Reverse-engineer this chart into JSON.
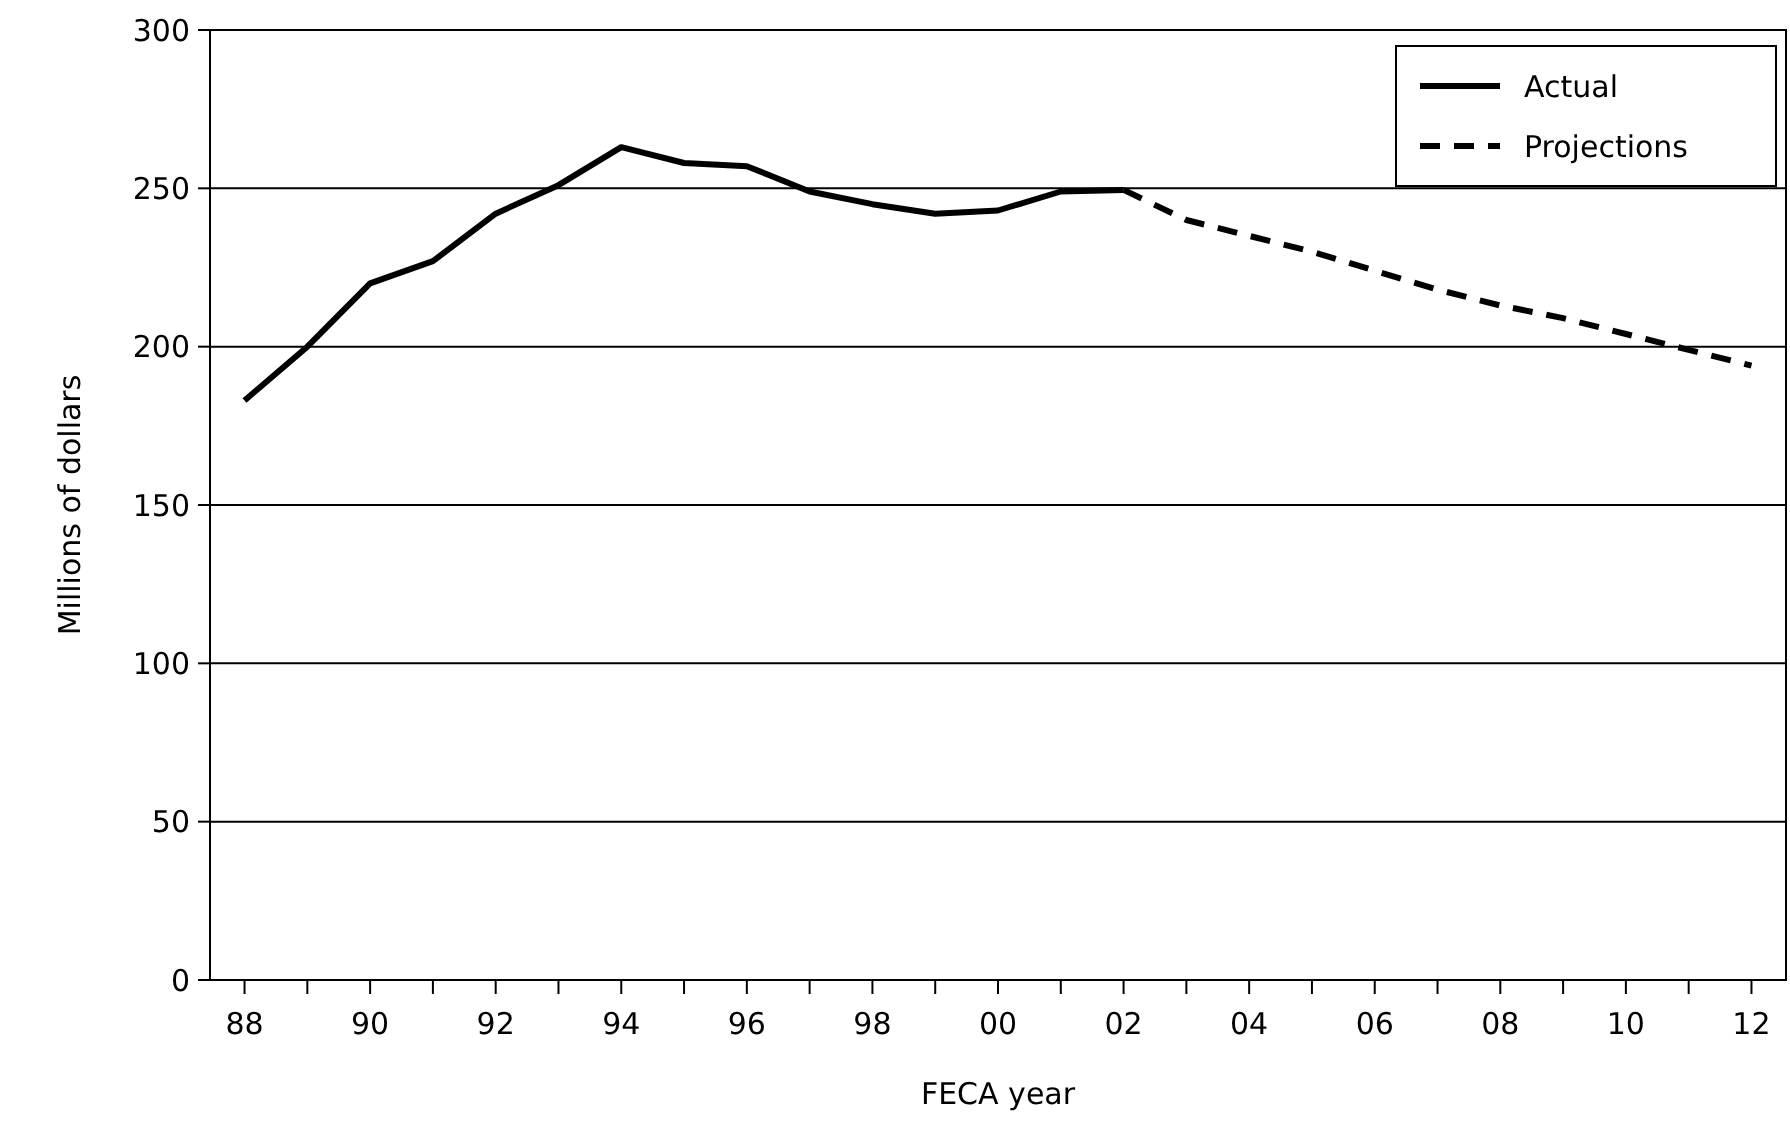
{
  "chart_data": {
    "type": "line",
    "xlabel": "FECA year",
    "ylabel": "Millions of dollars",
    "categories": [
      "88",
      null,
      "90",
      null,
      "92",
      null,
      "94",
      null,
      "96",
      null,
      "98",
      null,
      "00",
      null,
      "02",
      null,
      "04",
      null,
      "06",
      null,
      "08",
      null,
      "10",
      null,
      "12"
    ],
    "series": [
      {
        "name": "Actual",
        "color": "#000000",
        "line_style": "solid",
        "values": [
          183,
          200,
          220,
          227,
          242,
          251,
          263,
          258,
          257,
          249,
          245,
          242,
          243,
          249,
          249.5,
          null,
          null,
          null,
          null,
          null,
          null,
          null,
          null,
          null,
          null
        ]
      },
      {
        "name": "Projections",
        "color": "#000000",
        "line_style": "dashed",
        "values": [
          null,
          null,
          null,
          null,
          null,
          null,
          null,
          null,
          null,
          null,
          null,
          null,
          null,
          null,
          249.5,
          240,
          235,
          230,
          224,
          218,
          213,
          209,
          204,
          199,
          194
        ]
      }
    ],
    "ylim": [
      0,
      300
    ],
    "yticks": [
      0,
      50,
      100,
      150,
      200,
      250,
      300
    ],
    "grid": "y",
    "legend": "top right"
  }
}
